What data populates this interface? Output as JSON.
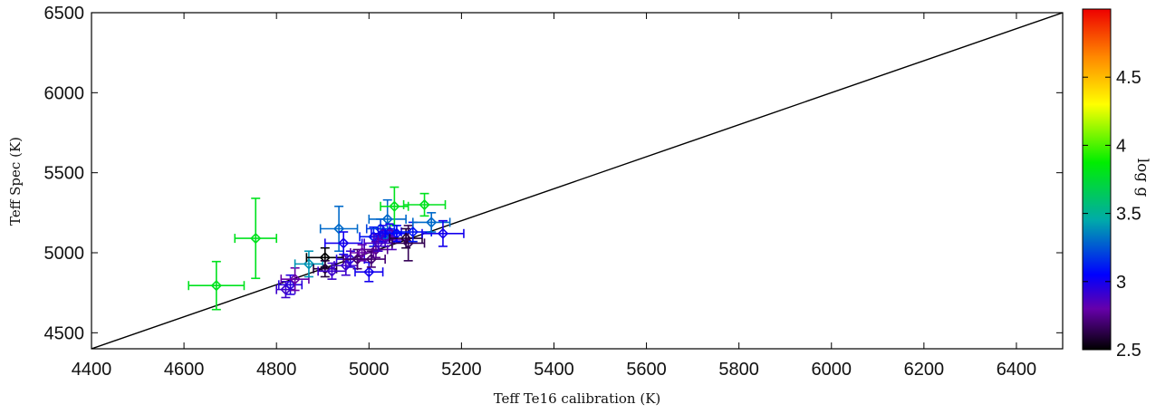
{
  "chart_data": {
    "type": "scatter",
    "xlabel": "Teff Te16 calibration (K)",
    "ylabel": "Teff Spec (K)",
    "xlim": [
      4400,
      6500
    ],
    "ylim": [
      4400,
      6500
    ],
    "x_ticks": [
      4400,
      4600,
      4800,
      5000,
      5200,
      5400,
      5600,
      5800,
      6000,
      6200,
      6400
    ],
    "y_ticks": [
      4500,
      5000,
      5500,
      6000,
      6500
    ],
    "reference_line": {
      "from": [
        4400,
        4400
      ],
      "to": [
        6500,
        6500
      ]
    },
    "colorbar": {
      "label": "log g",
      "range": [
        2.5,
        5.0
      ],
      "ticks": [
        "2.5",
        "3",
        "3.5",
        "4",
        "4.5"
      ],
      "colormap": [
        "#000000",
        "#6600aa",
        "#0000ff",
        "#00aaaa",
        "#00ee00",
        "#ffff00",
        "#ff8800",
        "#ee0000"
      ]
    },
    "points": [
      {
        "x": 4670,
        "y": 4795,
        "xerr": 60,
        "yerr": 150,
        "logg": 3.8
      },
      {
        "x": 4755,
        "y": 5090,
        "xerr": 45,
        "yerr": 250,
        "logg": 3.8
      },
      {
        "x": 4820,
        "y": 4770,
        "xerr": 20,
        "yerr": 50,
        "logg": 2.9
      },
      {
        "x": 4830,
        "y": 4800,
        "xerr": 25,
        "yerr": 60,
        "logg": 2.95
      },
      {
        "x": 4840,
        "y": 4835,
        "xerr": 30,
        "yerr": 70,
        "logg": 2.8
      },
      {
        "x": 4870,
        "y": 4930,
        "xerr": 30,
        "yerr": 80,
        "logg": 3.4
      },
      {
        "x": 4905,
        "y": 4970,
        "xerr": 40,
        "yerr": 60,
        "logg": 2.5
      },
      {
        "x": 4905,
        "y": 4900,
        "xerr": 25,
        "yerr": 50,
        "logg": 2.6
      },
      {
        "x": 4920,
        "y": 4885,
        "xerr": 30,
        "yerr": 50,
        "logg": 2.9
      },
      {
        "x": 4935,
        "y": 5150,
        "xerr": 40,
        "yerr": 140,
        "logg": 3.3
      },
      {
        "x": 4945,
        "y": 5060,
        "xerr": 40,
        "yerr": 70,
        "logg": 3.0
      },
      {
        "x": 4950,
        "y": 4920,
        "xerr": 25,
        "yerr": 60,
        "logg": 2.9
      },
      {
        "x": 4960,
        "y": 4960,
        "xerr": 30,
        "yerr": 50,
        "logg": 2.95
      },
      {
        "x": 4975,
        "y": 4960,
        "xerr": 30,
        "yerr": 60,
        "logg": 2.7
      },
      {
        "x": 4985,
        "y": 5000,
        "xerr": 25,
        "yerr": 50,
        "logg": 2.8
      },
      {
        "x": 5000,
        "y": 4880,
        "xerr": 30,
        "yerr": 60,
        "logg": 3.0
      },
      {
        "x": 5005,
        "y": 4960,
        "xerr": 30,
        "yerr": 50,
        "logg": 2.7
      },
      {
        "x": 5010,
        "y": 5100,
        "xerr": 30,
        "yerr": 60,
        "logg": 3.1
      },
      {
        "x": 5015,
        "y": 5020,
        "xerr": 25,
        "yerr": 50,
        "logg": 2.75
      },
      {
        "x": 5020,
        "y": 5060,
        "xerr": 30,
        "yerr": 50,
        "logg": 2.9
      },
      {
        "x": 5025,
        "y": 5150,
        "xerr": 30,
        "yerr": 60,
        "logg": 3.2
      },
      {
        "x": 5030,
        "y": 5120,
        "xerr": 25,
        "yerr": 50,
        "logg": 3.0
      },
      {
        "x": 5035,
        "y": 5090,
        "xerr": 25,
        "yerr": 50,
        "logg": 2.9
      },
      {
        "x": 5040,
        "y": 5210,
        "xerr": 40,
        "yerr": 120,
        "logg": 3.3
      },
      {
        "x": 5045,
        "y": 5130,
        "xerr": 25,
        "yerr": 50,
        "logg": 3.0
      },
      {
        "x": 5050,
        "y": 5080,
        "xerr": 30,
        "yerr": 60,
        "logg": 2.85
      },
      {
        "x": 5055,
        "y": 5290,
        "xerr": 30,
        "yerr": 120,
        "logg": 3.8
      },
      {
        "x": 5060,
        "y": 5120,
        "xerr": 25,
        "yerr": 50,
        "logg": 3.05
      },
      {
        "x": 5080,
        "y": 5090,
        "xerr": 35,
        "yerr": 60,
        "logg": 2.6
      },
      {
        "x": 5085,
        "y": 5060,
        "xerr": 35,
        "yerr": 110,
        "logg": 2.65
      },
      {
        "x": 5095,
        "y": 5130,
        "xerr": 40,
        "yerr": 60,
        "logg": 3.1
      },
      {
        "x": 5120,
        "y": 5300,
        "xerr": 45,
        "yerr": 70,
        "logg": 3.8
      },
      {
        "x": 5135,
        "y": 5190,
        "xerr": 40,
        "yerr": 60,
        "logg": 3.3
      },
      {
        "x": 5160,
        "y": 5120,
        "xerr": 45,
        "yerr": 80,
        "logg": 3.0
      }
    ]
  }
}
